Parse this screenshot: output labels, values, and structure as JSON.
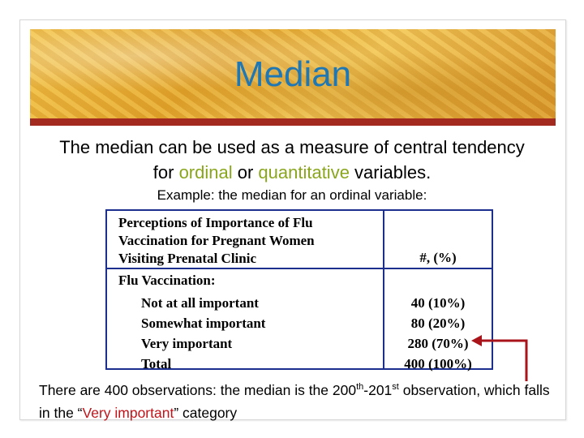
{
  "title": "Median",
  "intro": {
    "before": "The median can be used as a measure of central tendency for ",
    "ordinal": "ordinal",
    "middle": " or ",
    "quantitative": "quantitative",
    "after": " variables."
  },
  "example": "Example:  the median for an ordinal variable:",
  "table": {
    "header_lines": [
      "Perceptions of Importance of Flu",
      "Vaccination for Pregnant Women",
      "Visiting Prenatal Clinic"
    ],
    "header_value": "#, (%)",
    "group_label": "Flu Vaccination:",
    "rows": [
      {
        "label": "Not at all important",
        "value": "40  (10%)"
      },
      {
        "label": "Somewhat important",
        "value": "80  (20%)"
      },
      {
        "label": "Very important",
        "value": "280 (70%)"
      },
      {
        "label": "Total",
        "value": "400 (100%)"
      }
    ]
  },
  "footer": {
    "part1": "There are 400 observations: the median is the 200",
    "sup1": "th",
    "part2": "-201",
    "sup2": "st",
    "part3": " observation, which falls in the “",
    "highlight": "Very important",
    "part4": "” category"
  },
  "colors": {
    "title": "#1f77b4",
    "accent": "#8aa61e",
    "rule": "#a22a1f",
    "table_border": "#1c2f8e",
    "highlight": "#c0141a",
    "arrow": "#a8141a"
  }
}
